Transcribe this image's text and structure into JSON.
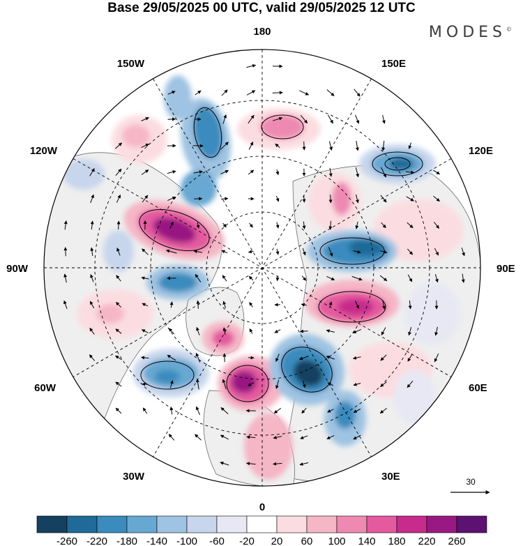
{
  "title": "Base 29/05/2025 00 UTC, valid 29/05/2025 12 UTC",
  "brand": "MODES",
  "brand_mark": "©",
  "longitude_labels": {
    "top": "180",
    "bottom": "0",
    "left": "90W",
    "right": "90E",
    "upper_left_1": "150W",
    "upper_left_2": "120W",
    "upper_right_1": "150E",
    "upper_right_2": "120E",
    "lower_left_1": "60W",
    "lower_left_2": "30W",
    "lower_right_1": "60E",
    "lower_right_2": "30E"
  },
  "reference_vector": {
    "label": "30",
    "icon": "arrow-right-icon"
  },
  "legend": {
    "ticks": [
      "-260",
      "-220",
      "-180",
      "-140",
      "-100",
      "-60",
      "-20",
      "20",
      "60",
      "100",
      "140",
      "180",
      "220",
      "260"
    ],
    "colors": [
      "#16405f",
      "#1f6a98",
      "#3a8bbe",
      "#67a8d2",
      "#9fc3e2",
      "#c7d6ec",
      "#e7e8f3",
      "#ffffff",
      "#fbdde1",
      "#f5b6c6",
      "#ee8ab2",
      "#e45a9f",
      "#c72b8c",
      "#991982",
      "#5c1270"
    ]
  },
  "colors": {
    "land": "#f2f2f2",
    "ocean": "#ffffff",
    "coast": "#555555"
  }
}
